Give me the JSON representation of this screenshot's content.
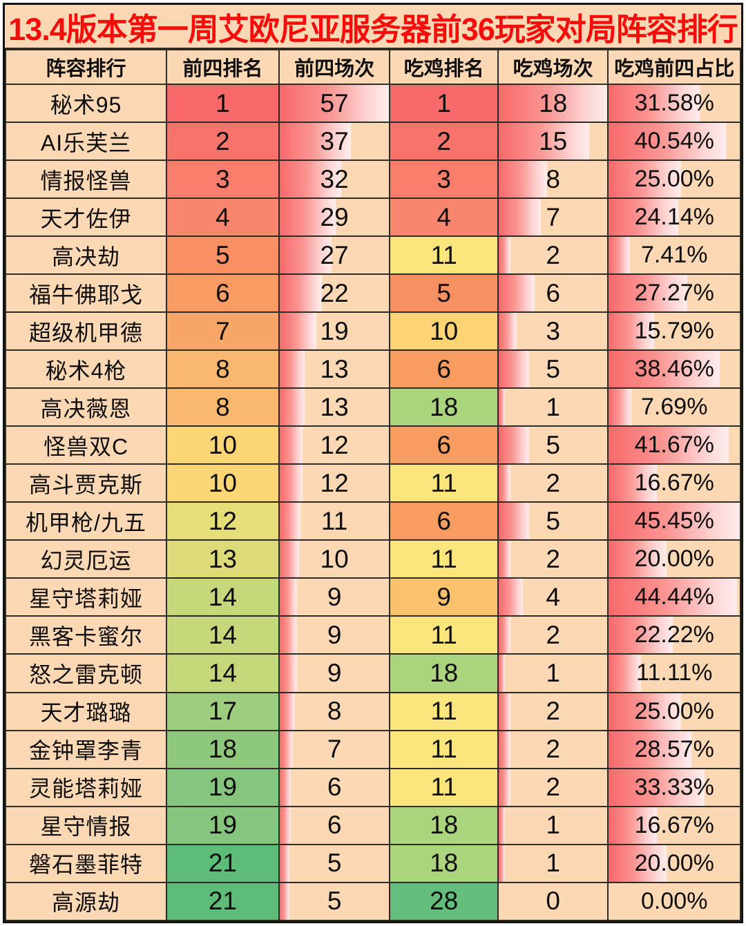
{
  "title": "13.4版本第一周艾欧尼亚服务器前36玩家对局阵容排行",
  "palette": {
    "page_bg": "#ffffff",
    "cell_bg": "#fcd9b4",
    "grid_border": "#2e2a24",
    "outer_border": "#141210",
    "title_color": "#f60d0b",
    "text_color": "#0d0c0a",
    "databar_start": "#f8696b",
    "databar_end": "#feedec",
    "scale_red": "#f8696b",
    "scale_yellow": "#ffeb84",
    "scale_green": "#63be7b"
  },
  "chart_data": {
    "type": "table",
    "title": "13.4版本第一周艾欧尼亚服务器前36玩家对局阵容排行",
    "columns": [
      "阵容排行",
      "前四排名",
      "前四场次",
      "吃鸡排名",
      "吃鸡场次",
      "吃鸡前四占比"
    ],
    "bar_maxima": {
      "top4_games_max": 57,
      "win_games_max": 18,
      "ratio_max_pct": 45.45
    },
    "rows": [
      {
        "name": "秘术95",
        "top4_rank": "1",
        "top4_rank_color": "#f8696b",
        "top4_games": "57",
        "win_rank": "1",
        "win_rank_color": "#f8696b",
        "win_games": "18",
        "ratio": "31.58%"
      },
      {
        "name": "AI乐芙兰",
        "top4_rank": "2",
        "top4_rank_color": "#f8736c",
        "top4_games": "37",
        "win_rank": "2",
        "win_rank_color": "#f8736c",
        "win_games": "15",
        "ratio": "40.54%"
      },
      {
        "name": "情报怪兽",
        "top4_rank": "3",
        "top4_rank_color": "#f87d6d",
        "top4_games": "32",
        "win_rank": "3",
        "win_rank_color": "#f87d6d",
        "win_games": "8",
        "ratio": "25.00%"
      },
      {
        "name": "天才佐伊",
        "top4_rank": "4",
        "top4_rank_color": "#f8876e",
        "top4_games": "29",
        "win_rank": "4",
        "win_rank_color": "#f8876e",
        "win_games": "7",
        "ratio": "24.14%"
      },
      {
        "name": "高决劫",
        "top4_rank": "5",
        "top4_rank_color": "#f89063",
        "top4_games": "27",
        "win_rank": "11",
        "win_rank_color": "#fde57d",
        "win_games": "2",
        "ratio": "7.41%"
      },
      {
        "name": "福牛佛耶戈",
        "top4_rank": "6",
        "top4_rank_color": "#f89a64",
        "top4_games": "22",
        "win_rank": "5",
        "win_rank_color": "#f79162",
        "win_games": "6",
        "ratio": "27.27%"
      },
      {
        "name": "超级机甲德",
        "top4_rank": "7",
        "top4_rank_color": "#f9a669",
        "top4_games": "19",
        "win_rank": "10",
        "win_rank_color": "#fcd475",
        "win_games": "3",
        "ratio": "15.79%"
      },
      {
        "name": "秘术4枪",
        "top4_rank": "8",
        "top4_rank_color": "#fab86f",
        "top4_games": "13",
        "win_rank": "6",
        "win_rank_color": "#f89d62",
        "win_games": "5",
        "ratio": "38.46%"
      },
      {
        "name": "高决薇恩",
        "top4_rank": "8",
        "top4_rank_color": "#fab86f",
        "top4_games": "13",
        "win_rank": "18",
        "win_rank_color": "#abd47e",
        "win_games": "1",
        "ratio": "7.69%"
      },
      {
        "name": "怪兽双C",
        "top4_rank": "10",
        "top4_rank_color": "#fcd674",
        "top4_games": "12",
        "win_rank": "6",
        "win_rank_color": "#f89d62",
        "win_games": "5",
        "ratio": "41.67%"
      },
      {
        "name": "高斗贾克斯",
        "top4_rank": "10",
        "top4_rank_color": "#fcd674",
        "top4_games": "12",
        "win_rank": "11",
        "win_rank_color": "#fde57d",
        "win_games": "2",
        "ratio": "16.67%"
      },
      {
        "name": "机甲枪/九五",
        "top4_rank": "12",
        "top4_rank_color": "#e4dd78",
        "top4_games": "11",
        "win_rank": "6",
        "win_rank_color": "#f89d62",
        "win_games": "5",
        "ratio": "45.45%"
      },
      {
        "name": "幻灵厄运",
        "top4_rank": "13",
        "top4_rank_color": "#dcda79",
        "top4_games": "10",
        "win_rank": "11",
        "win_rank_color": "#fde57d",
        "win_games": "2",
        "ratio": "20.00%"
      },
      {
        "name": "星守塔莉娅",
        "top4_rank": "14",
        "top4_rank_color": "#c6d67a",
        "top4_games": "9",
        "win_rank": "9",
        "win_rank_color": "#fbc26e",
        "win_games": "4",
        "ratio": "44.44%"
      },
      {
        "name": "黑客卡蜜尔",
        "top4_rank": "14",
        "top4_rank_color": "#c6d67a",
        "top4_games": "9",
        "win_rank": "11",
        "win_rank_color": "#fde57d",
        "win_games": "2",
        "ratio": "22.22%"
      },
      {
        "name": "怒之雷克顿",
        "top4_rank": "14",
        "top4_rank_color": "#c6d67a",
        "top4_games": "9",
        "win_rank": "18",
        "win_rank_color": "#abd47e",
        "win_games": "1",
        "ratio": "11.11%"
      },
      {
        "name": "天才璐璐",
        "top4_rank": "17",
        "top4_rank_color": "#9fcd7e",
        "top4_games": "8",
        "win_rank": "11",
        "win_rank_color": "#fde57d",
        "win_games": "2",
        "ratio": "25.00%"
      },
      {
        "name": "金钟罩李青",
        "top4_rank": "18",
        "top4_rank_color": "#8fc87d",
        "top4_games": "7",
        "win_rank": "11",
        "win_rank_color": "#fde57d",
        "win_games": "2",
        "ratio": "28.57%"
      },
      {
        "name": "灵能塔莉娅",
        "top4_rank": "19",
        "top4_rank_color": "#86c57d",
        "top4_games": "6",
        "win_rank": "11",
        "win_rank_color": "#fde57d",
        "win_games": "2",
        "ratio": "33.33%"
      },
      {
        "name": "星守情报",
        "top4_rank": "19",
        "top4_rank_color": "#86c57d",
        "top4_games": "6",
        "win_rank": "18",
        "win_rank_color": "#abd47e",
        "win_games": "1",
        "ratio": "16.67%"
      },
      {
        "name": "磐石墨菲特",
        "top4_rank": "21",
        "top4_rank_color": "#5dbc77",
        "top4_games": "5",
        "win_rank": "18",
        "win_rank_color": "#abd47e",
        "win_games": "1",
        "ratio": "20.00%"
      },
      {
        "name": "高源劫",
        "top4_rank": "21",
        "top4_rank_color": "#5dbc77",
        "top4_games": "5",
        "win_rank": "28",
        "win_rank_color": "#63be7b",
        "win_games": "0",
        "ratio": "0.00%"
      }
    ]
  }
}
